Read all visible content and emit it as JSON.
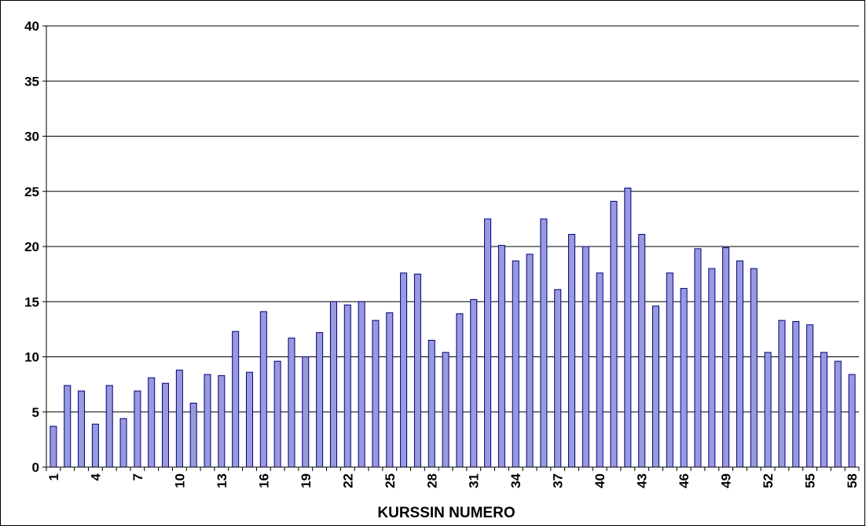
{
  "chart_data": {
    "type": "bar",
    "title": "",
    "xlabel": "KURSSIN NUMERO",
    "ylabel": "",
    "ylim": [
      0,
      40
    ],
    "yticks": [
      0,
      5,
      10,
      15,
      20,
      25,
      30,
      35,
      40
    ],
    "grid": true,
    "legend": "none",
    "bar_color": "#9999dd",
    "bar_edge_color": "#000080",
    "categories": [
      1,
      2,
      3,
      4,
      5,
      6,
      7,
      8,
      9,
      10,
      11,
      12,
      13,
      14,
      15,
      16,
      17,
      18,
      19,
      20,
      21,
      22,
      23,
      24,
      25,
      26,
      27,
      28,
      29,
      30,
      31,
      32,
      33,
      34,
      35,
      36,
      37,
      38,
      39,
      40,
      41,
      42,
      43,
      44,
      45,
      46,
      47,
      48,
      49,
      50,
      51,
      52,
      53,
      54,
      55,
      56,
      57,
      58
    ],
    "x_tick_labels": [
      "1",
      "",
      "",
      "4",
      "",
      "",
      "7",
      "",
      "",
      "10",
      "",
      "",
      "13",
      "",
      "",
      "16",
      "",
      "",
      "19",
      "",
      "",
      "22",
      "",
      "",
      "25",
      "",
      "",
      "28",
      "",
      "",
      "31",
      "",
      "",
      "34",
      "",
      "",
      "37",
      "",
      "",
      "40",
      "",
      "",
      "43",
      "",
      "",
      "46",
      "",
      "",
      "49",
      "",
      "",
      "52",
      "",
      "",
      "55",
      "",
      "",
      "58"
    ],
    "values": [
      3.7,
      7.4,
      6.9,
      3.9,
      7.4,
      4.4,
      6.9,
      8.1,
      7.6,
      8.8,
      5.8,
      8.4,
      8.3,
      12.3,
      8.6,
      14.1,
      9.6,
      11.7,
      10.0,
      12.2,
      15.0,
      14.7,
      15.0,
      13.3,
      14.0,
      17.6,
      17.5,
      11.5,
      10.4,
      13.9,
      15.2,
      22.5,
      20.1,
      18.7,
      19.3,
      22.5,
      16.1,
      21.1,
      20.0,
      17.6,
      24.1,
      25.3,
      21.1,
      14.6,
      17.6,
      16.2,
      19.8,
      18.0,
      19.9,
      18.7,
      18.0,
      10.4,
      13.3,
      13.2,
      12.9,
      10.4,
      9.6,
      8.4
    ]
  }
}
